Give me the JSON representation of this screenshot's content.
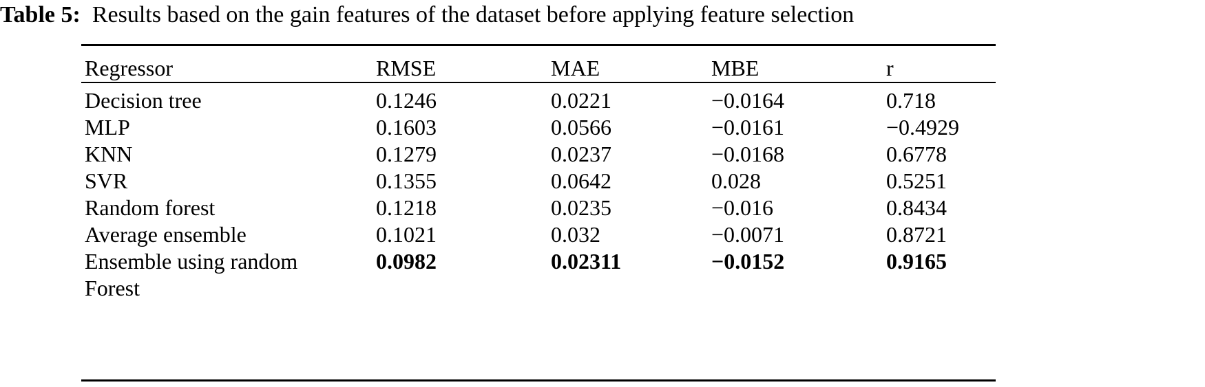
{
  "caption": {
    "label": "Table 5:",
    "text": "Results based on the gain features of the dataset before applying feature selection"
  },
  "table": {
    "headers": [
      "Regressor",
      "RMSE",
      "MAE",
      "MBE",
      "r"
    ],
    "rows": [
      [
        "Decision tree",
        "0.1246",
        "0.0221",
        "−0.0164",
        "0.718"
      ],
      [
        "MLP",
        "0.1603",
        "0.0566",
        "−0.0161",
        "−0.4929"
      ],
      [
        "KNN",
        "0.1279",
        "0.0237",
        "−0.0168",
        "0.6778"
      ],
      [
        "SVR",
        "0.1355",
        "0.0642",
        "0.028",
        "0.5251"
      ],
      [
        "Random forest",
        "0.1218",
        "0.0235",
        "−0.016",
        "0.8434"
      ],
      [
        "Average ensemble",
        "0.1021",
        "0.032",
        "−0.0071",
        "0.8721"
      ],
      [
        "Ensemble using random Forest",
        "0.0982",
        "0.02311",
        "−0.0152",
        "0.9165"
      ]
    ],
    "bold_row_index": 6
  }
}
